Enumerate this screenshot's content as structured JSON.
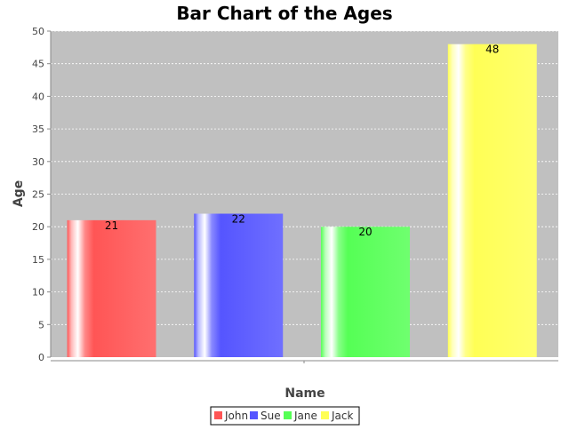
{
  "chart_data": {
    "type": "bar",
    "title": "Bar Chart of the Ages",
    "xlabel": "Name",
    "ylabel": "Age",
    "categories": [
      "John",
      "Sue",
      "Jane",
      "Jack"
    ],
    "values": [
      21,
      22,
      20,
      48
    ],
    "colors": [
      "#ff5555",
      "#5555ff",
      "#55ff55",
      "#ffff55"
    ],
    "ylim": [
      0,
      50
    ],
    "yticks": [
      0,
      5,
      10,
      15,
      20,
      25,
      30,
      35,
      40,
      45,
      50
    ],
    "grid": true,
    "plot_background": "#c0c0c0",
    "legend_position": "bottom",
    "show_value_labels": true,
    "legend": [
      "John",
      "Sue",
      "Jane",
      "Jack"
    ]
  }
}
